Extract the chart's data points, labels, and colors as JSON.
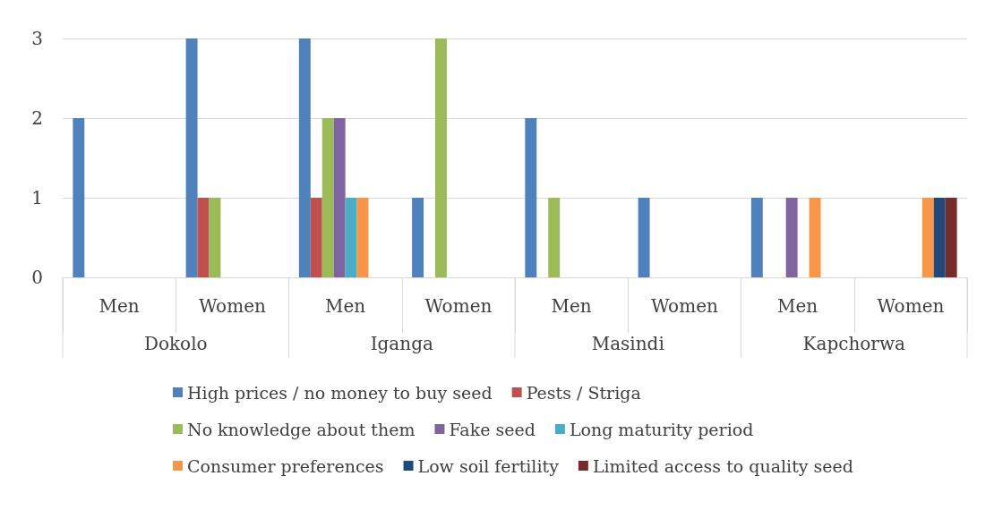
{
  "chart_data": {
    "type": "bar",
    "categories": [
      "Men",
      "Women",
      "Men",
      "Women",
      "Men",
      "Women",
      "Men",
      "Women"
    ],
    "annotations": [
      "Dokolo",
      "Iganga",
      "Masindi",
      "Kapchorwa"
    ],
    "series": [
      {
        "name": "High prices / no money to buy seed",
        "color": "#4f81bd",
        "values": [
          2,
          3,
          3,
          1,
          2,
          1,
          1,
          0
        ]
      },
      {
        "name": "Pests / Striga",
        "color": "#c0504d",
        "values": [
          0,
          1,
          1,
          0,
          0,
          0,
          0,
          0
        ]
      },
      {
        "name": "No knowledge about them",
        "color": "#9bbb59",
        "values": [
          0,
          1,
          2,
          3,
          1,
          0,
          0,
          0
        ]
      },
      {
        "name": "Fake seed",
        "color": "#8064a2",
        "values": [
          0,
          0,
          2,
          0,
          0,
          0,
          1,
          0
        ]
      },
      {
        "name": "Long maturity period",
        "color": "#4bacc6",
        "values": [
          0,
          0,
          1,
          0,
          0,
          0,
          0,
          0
        ]
      },
      {
        "name": "Consumer preferences",
        "color": "#f79646",
        "values": [
          0,
          0,
          1,
          0,
          0,
          0,
          1,
          1
        ]
      },
      {
        "name": "Low soil fertility",
        "color": "#1f497d",
        "values": [
          0,
          0,
          0,
          0,
          0,
          0,
          0,
          1
        ]
      },
      {
        "name": "Limited access to quality seed",
        "color": "#772c2a",
        "values": [
          0,
          0,
          0,
          0,
          0,
          0,
          0,
          1
        ]
      }
    ],
    "ylim": [
      0,
      3
    ],
    "yticks": [
      0,
      1,
      2,
      3
    ],
    "grid": "y",
    "legend": "bottom"
  }
}
